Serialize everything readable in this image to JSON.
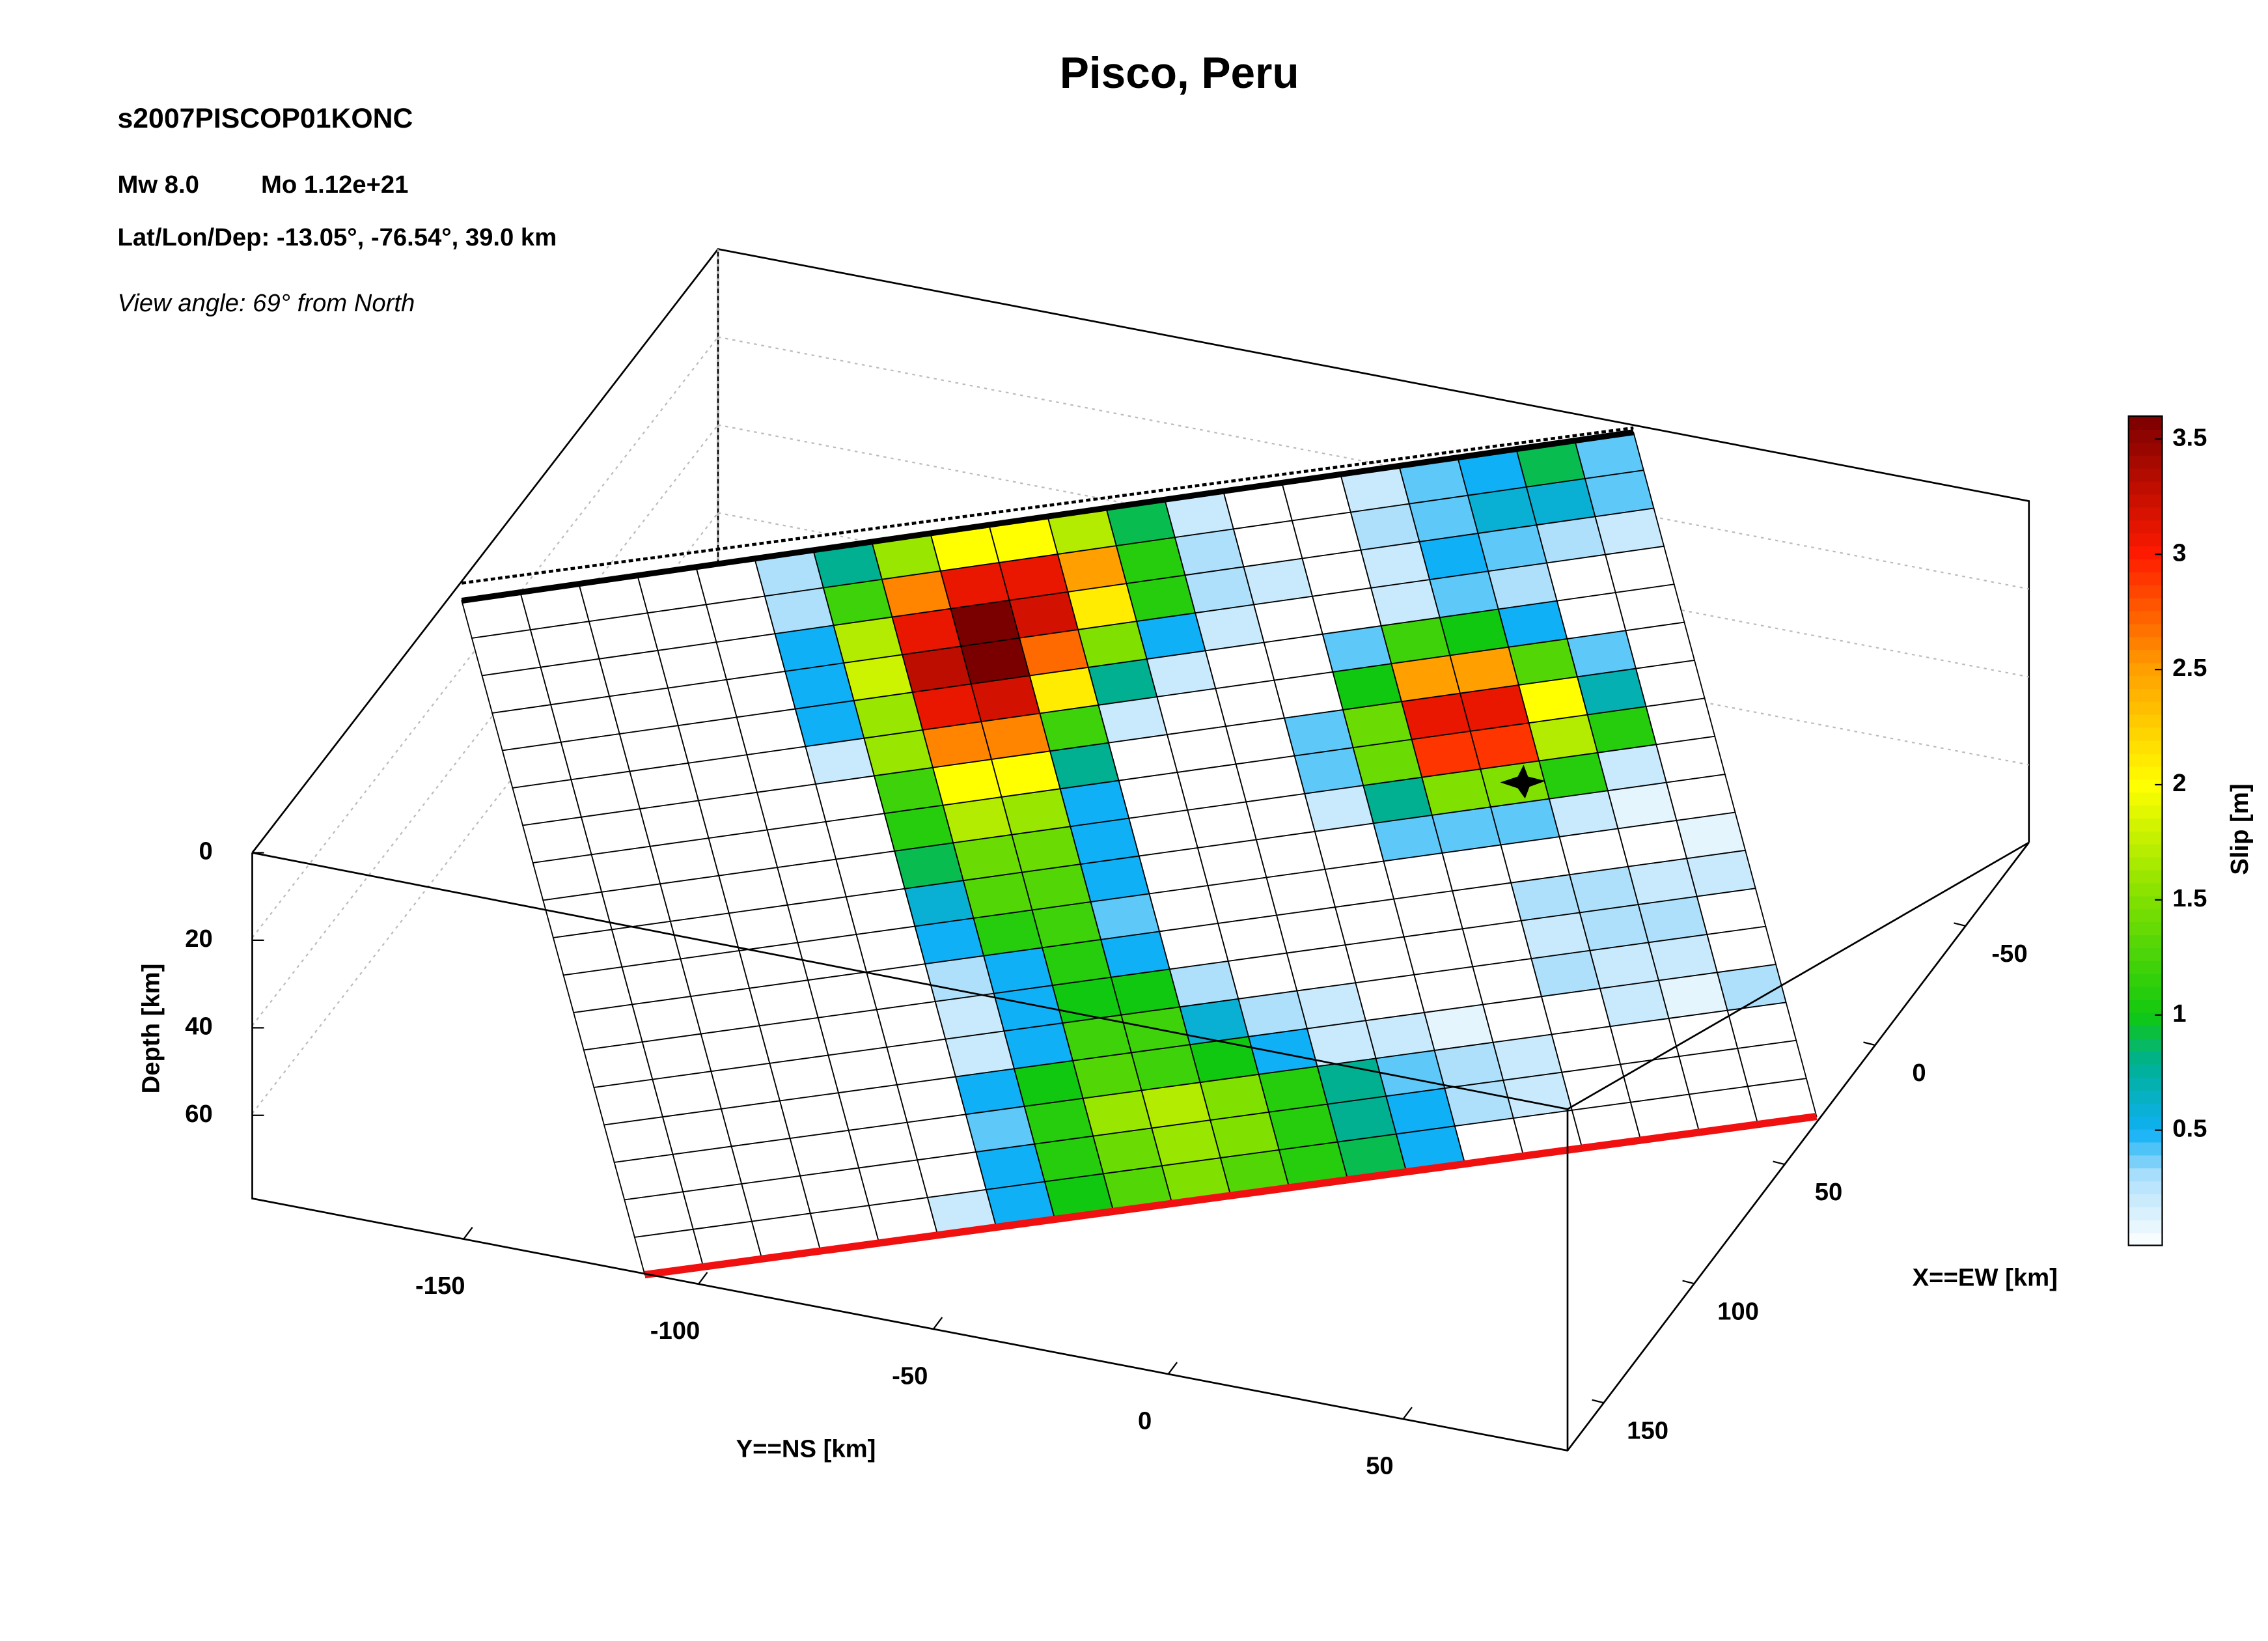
{
  "chart_data": {
    "type": "slip-map",
    "title": "Pisco, Peru",
    "event_id": "s2007PISCOP01KONC",
    "magnitude": "Mw 8.0",
    "moment": "Mo 1.12e+21",
    "location": "Lat/Lon/Dep: -13.05°, -76.54°, 39.0 km",
    "view": "View angle:  69° from North",
    "xlabel": "X==EW [km]",
    "ylabel": "Y==NS [km]",
    "zlabel": "Depth [km]",
    "colorbar_label": "Slip [m]",
    "xlim": [
      -85,
      170
    ],
    "xticks": [
      -50,
      0,
      50,
      100,
      150
    ],
    "ylim": [
      -195,
      85
    ],
    "yticks": [
      -150,
      -100,
      -50,
      0,
      50
    ],
    "zlim": [
      0,
      79
    ],
    "zticks": [
      0,
      20,
      40,
      60
    ],
    "clim": [
      0,
      3.6
    ],
    "cticks": [
      0.5,
      1,
      1.5,
      2,
      2.5,
      3,
      3.5
    ],
    "colormap": [
      [
        0,
        "#ffffff"
      ],
      [
        0.3,
        "#aee0fb"
      ],
      [
        0.5,
        "#0fb0f5"
      ],
      [
        0.8,
        "#00b090"
      ],
      [
        1.0,
        "#10c810"
      ],
      [
        1.5,
        "#80e000"
      ],
      [
        2.0,
        "#ffff00"
      ],
      [
        2.5,
        "#ffa000"
      ],
      [
        3.0,
        "#ff1a00"
      ],
      [
        3.6,
        "#7a0000"
      ]
    ],
    "slip": [
      [
        0,
        0,
        0,
        0,
        0,
        0.3,
        0.8,
        1.6,
        2.0,
        2.0,
        1.7,
        0.9,
        0.2,
        0,
        0,
        0.2,
        0.4,
        0.5,
        0.9,
        0.4
      ],
      [
        0,
        0,
        0,
        0,
        0,
        0.3,
        1.2,
        2.6,
        3.1,
        3.1,
        2.5,
        1.1,
        0.3,
        0,
        0,
        0.3,
        0.4,
        0.6,
        0.6,
        0.4
      ],
      [
        0,
        0,
        0,
        0,
        0,
        0.5,
        1.7,
        3.1,
        3.6,
        3.2,
        2.1,
        1.1,
        0.3,
        0.2,
        0,
        0.2,
        0.5,
        0.4,
        0.3,
        0.2
      ],
      [
        0,
        0,
        0,
        0,
        0,
        0.5,
        1.8,
        3.3,
        3.6,
        2.7,
        1.5,
        0.5,
        0.2,
        0,
        0,
        0.2,
        0.4,
        0.3,
        0,
        0
      ],
      [
        0,
        0,
        0,
        0,
        0,
        0.5,
        1.6,
        3.1,
        3.2,
        2.1,
        0.8,
        0.2,
        0,
        0,
        0.4,
        1.2,
        1.0,
        0.5,
        0,
        0
      ],
      [
        0,
        0,
        0,
        0,
        0,
        0.2,
        1.6,
        2.6,
        2.6,
        1.2,
        0.2,
        0,
        0,
        0,
        1.0,
        2.5,
        2.5,
        1.3,
        0.4,
        0
      ],
      [
        0,
        0,
        0,
        0,
        0,
        0,
        1.2,
        2.0,
        2.0,
        0.8,
        0,
        0,
        0,
        0.4,
        1.4,
        3.1,
        3.1,
        2.0,
        0.7,
        0
      ],
      [
        0,
        0,
        0,
        0,
        0,
        0,
        1.1,
        1.7,
        1.6,
        0.5,
        0,
        0,
        0,
        0.4,
        1.4,
        2.9,
        2.9,
        1.7,
        1.1,
        0
      ],
      [
        0,
        0,
        0,
        0,
        0,
        0,
        0.9,
        1.4,
        1.4,
        0.5,
        0,
        0,
        0,
        0.2,
        0.8,
        1.5,
        1.5,
        1.1,
        0.2,
        0
      ],
      [
        0,
        0,
        0,
        0,
        0,
        0,
        0.6,
        1.3,
        1.3,
        0.5,
        0,
        0,
        0,
        0,
        0.4,
        0.4,
        0.4,
        0.2,
        0.1,
        0
      ],
      [
        0,
        0,
        0,
        0,
        0,
        0,
        0.5,
        1.1,
        1.2,
        0.4,
        0,
        0,
        0,
        0,
        0,
        0,
        0,
        0,
        0,
        0.1
      ],
      [
        0,
        0,
        0,
        0,
        0,
        0,
        0.3,
        0.5,
        1.1,
        0.5,
        0,
        0,
        0,
        0,
        0,
        0,
        0.3,
        0.3,
        0.2,
        0.2
      ],
      [
        0,
        0,
        0,
        0,
        0,
        0,
        0.2,
        0.5,
        1.0,
        1.0,
        0.3,
        0,
        0,
        0,
        0,
        0,
        0.2,
        0.3,
        0.3,
        0
      ],
      [
        0,
        0,
        0,
        0,
        0,
        0,
        0.2,
        0.5,
        1.2,
        1.2,
        0.6,
        0.3,
        0.2,
        0,
        0,
        0,
        0.3,
        0.2,
        0.2,
        0
      ],
      [
        0,
        0,
        0,
        0,
        0,
        0,
        0.5,
        1.0,
        1.3,
        1.2,
        1.0,
        0.5,
        0.2,
        0.2,
        0.1,
        0,
        0,
        0.2,
        0.1,
        0.3
      ],
      [
        0,
        0,
        0,
        0,
        0,
        0,
        0.4,
        1.1,
        1.6,
        1.7,
        1.5,
        1.1,
        0.8,
        0.4,
        0.3,
        0.2,
        0,
        0,
        0,
        0
      ],
      [
        0,
        0,
        0,
        0,
        0,
        0,
        0.5,
        1.1,
        1.4,
        1.6,
        1.5,
        1.1,
        0.8,
        0.5,
        0.3,
        0.2,
        0,
        0,
        0,
        0
      ],
      [
        0,
        0,
        0,
        0,
        0,
        0.2,
        0.5,
        1.0,
        1.3,
        1.5,
        1.3,
        1.1,
        0.9,
        0.5,
        0,
        0,
        0,
        0,
        0,
        0
      ]
    ]
  }
}
